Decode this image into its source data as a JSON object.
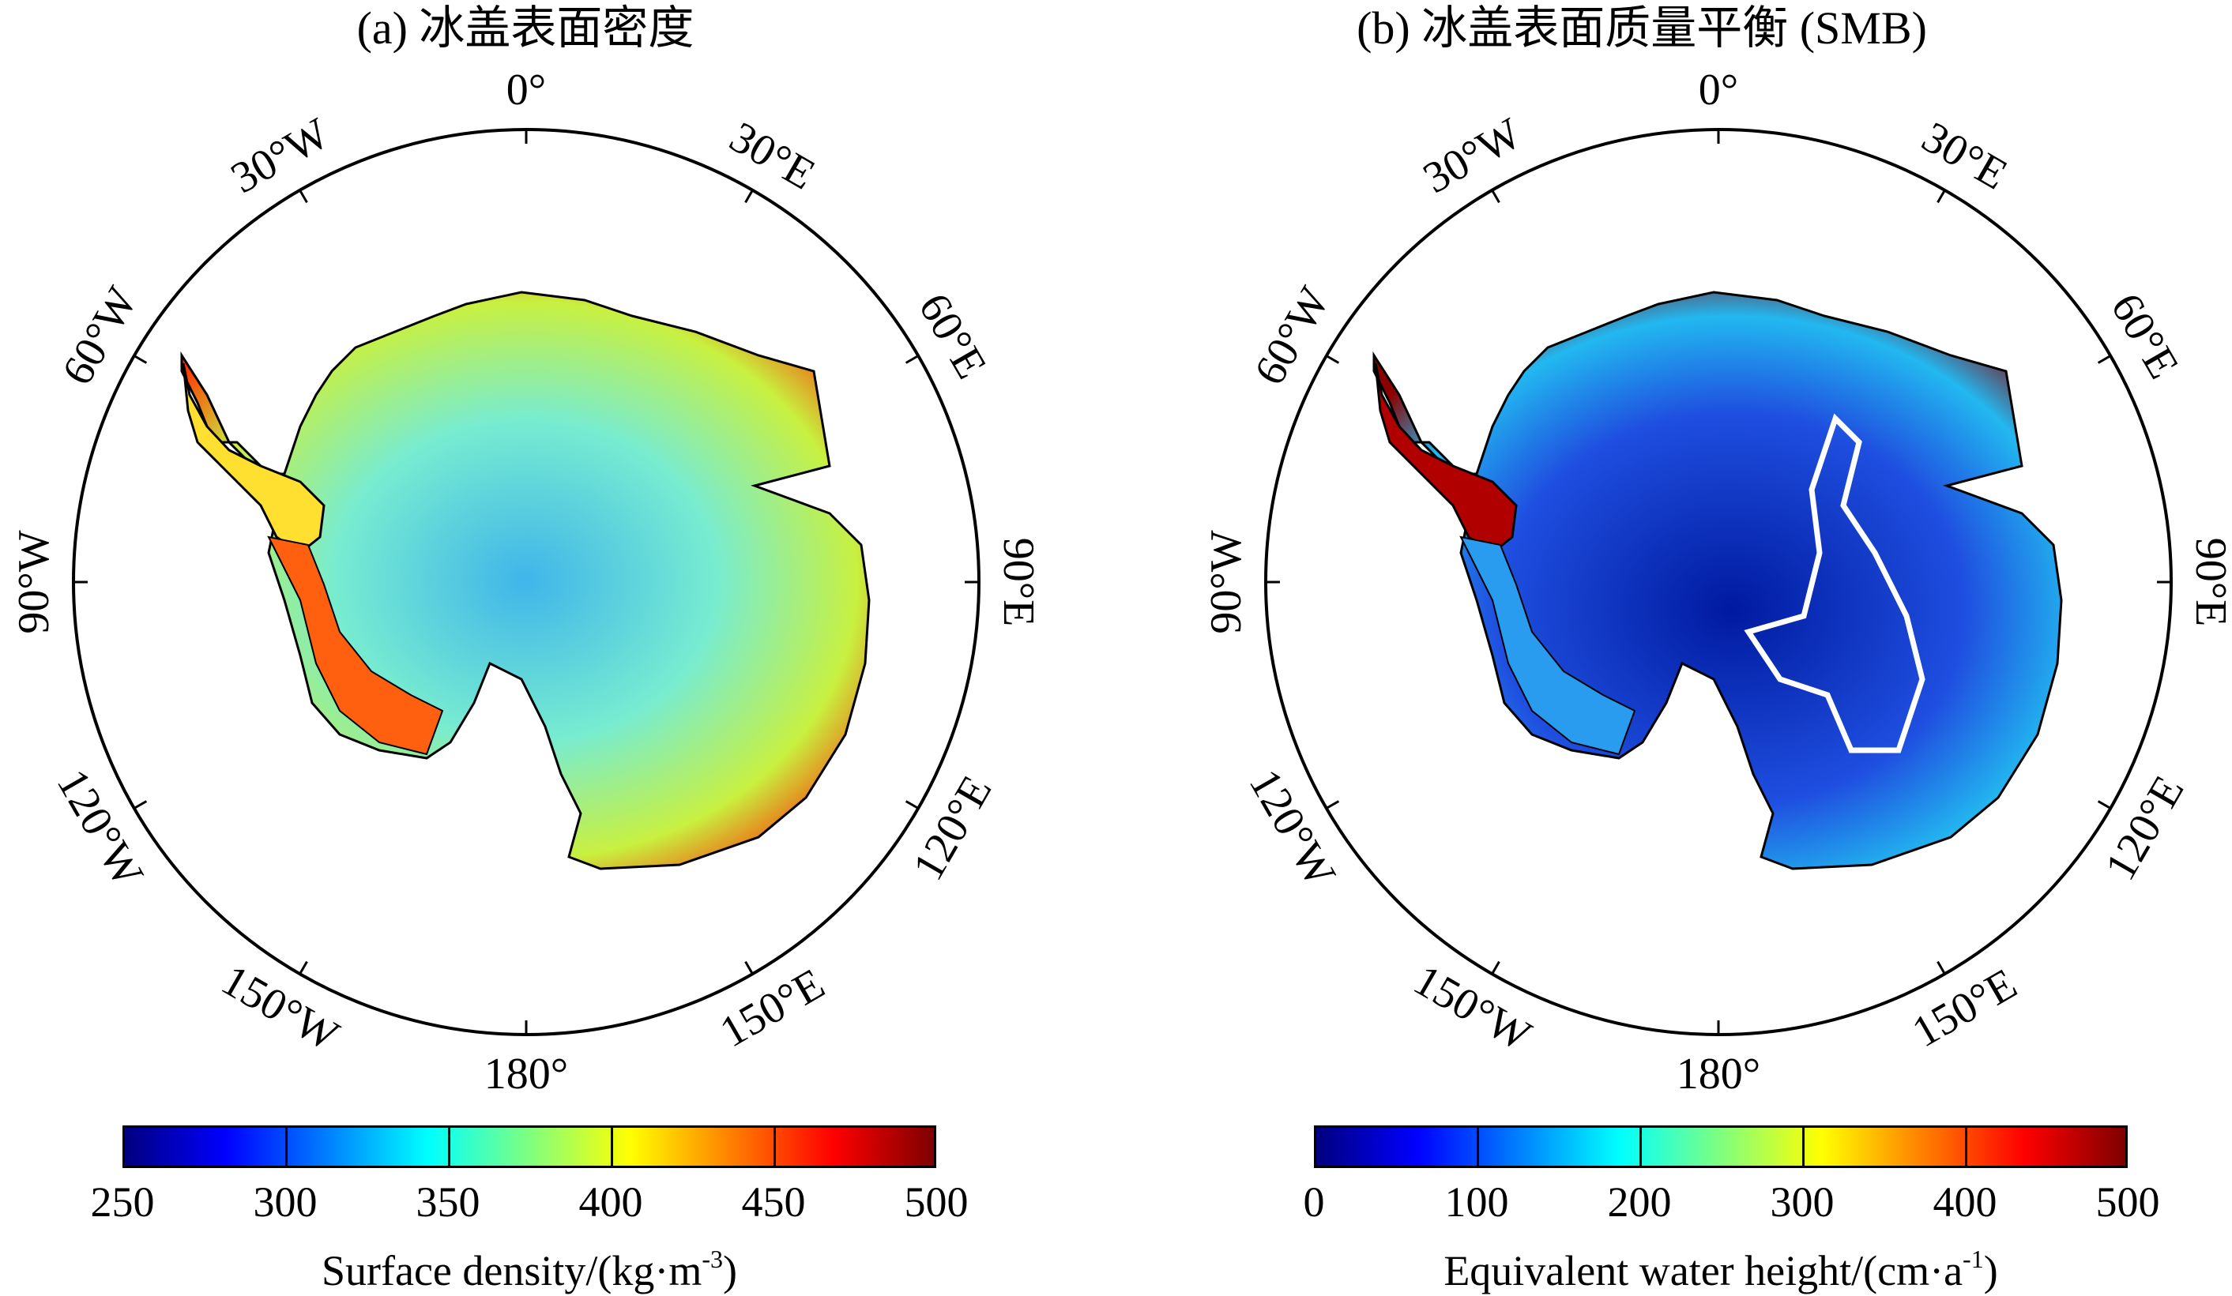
{
  "panels": [
    {
      "id": "a",
      "title": "(a) 冰盖表面密度",
      "longitude_labels": [
        "0°",
        "30°E",
        "60°E",
        "90°E",
        "120°E",
        "150°E",
        "180°",
        "150°W",
        "120°W",
        "90°W",
        "60°W",
        "30°W"
      ],
      "colorbar": {
        "ticks": [
          "250",
          "300",
          "350",
          "400",
          "450",
          "500"
        ],
        "range": [
          250,
          500
        ],
        "label_main": "Surface density/(kg·m",
        "label_sup": "-3",
        "label_end": ")"
      },
      "field": "surface density"
    },
    {
      "id": "b",
      "title": "(b) 冰盖表面质量平衡 (SMB)",
      "longitude_labels": [
        "0°",
        "30°E",
        "60°E",
        "90°E",
        "120°E",
        "150°E",
        "180°",
        "150°W",
        "120°W",
        "90°W",
        "60°W",
        "30°W"
      ],
      "colorbar": {
        "ticks": [
          "0",
          "100",
          "200",
          "300",
          "400",
          "500"
        ],
        "range": [
          0,
          500
        ],
        "label_main": "Equivalent water height/(cm·a",
        "label_sup": "-1",
        "label_end": ")"
      },
      "field": "surface mass balance",
      "overlay": "white outline region in East Antarctic interior"
    }
  ],
  "colormap": [
    "#00007f",
    "#0000ff",
    "#007fff",
    "#00ffff",
    "#7fff7f",
    "#ffff00",
    "#ff7f00",
    "#ff0000",
    "#7f0000"
  ],
  "colors": {
    "panel_a": {
      "coast": "#ff3000",
      "inner": "#c8f040",
      "mid": "#78ecd0",
      "core": "#3fb5ea"
    },
    "panel_b": {
      "coast": "#8c0000",
      "inner": "#22b8f0",
      "mid": "#1f4fe0",
      "core": "#001aa0",
      "outline": "#ffffff"
    }
  }
}
